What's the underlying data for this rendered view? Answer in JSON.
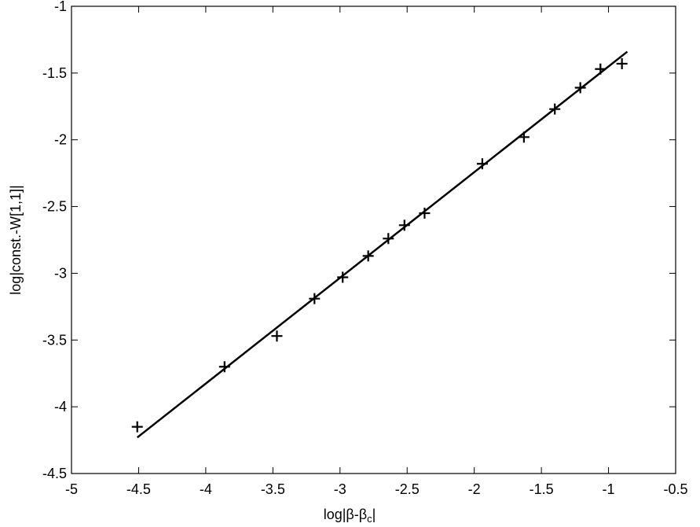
{
  "chart_data": {
    "type": "scatter",
    "x_label": [
      "log|β-β",
      "c",
      "|"
    ],
    "y_label": "log|const.-W[1,1]|",
    "xlim": [
      -5,
      -0.5
    ],
    "ylim": [
      -4.5,
      -1
    ],
    "xticks": [
      -5,
      -4.5,
      -4,
      -3.5,
      -3,
      -2.5,
      -2,
      -1.5,
      -1,
      -0.5
    ],
    "yticks": [
      -4.5,
      -4,
      -3.5,
      -3,
      -2.5,
      -2,
      -1.5,
      -1
    ],
    "grid": false,
    "series": [
      {
        "mode": "markers",
        "marker": "+",
        "color": "#000000",
        "x": [
          -4.51,
          -3.86,
          -3.47,
          -3.19,
          -2.98,
          -2.79,
          -2.64,
          -2.52,
          -2.37,
          -1.94,
          -1.63,
          -1.4,
          -1.21,
          -1.06,
          -0.9
        ],
        "values": [
          -4.15,
          -3.7,
          -3.47,
          -3.19,
          -3.03,
          -2.87,
          -2.74,
          -2.64,
          -2.55,
          -2.18,
          -1.98,
          -1.77,
          -1.61,
          -1.47,
          -1.43
        ]
      },
      {
        "mode": "line",
        "color": "#000000",
        "x": [
          -4.51,
          -0.86
        ],
        "values": [
          -4.23,
          -1.34
        ]
      }
    ]
  }
}
